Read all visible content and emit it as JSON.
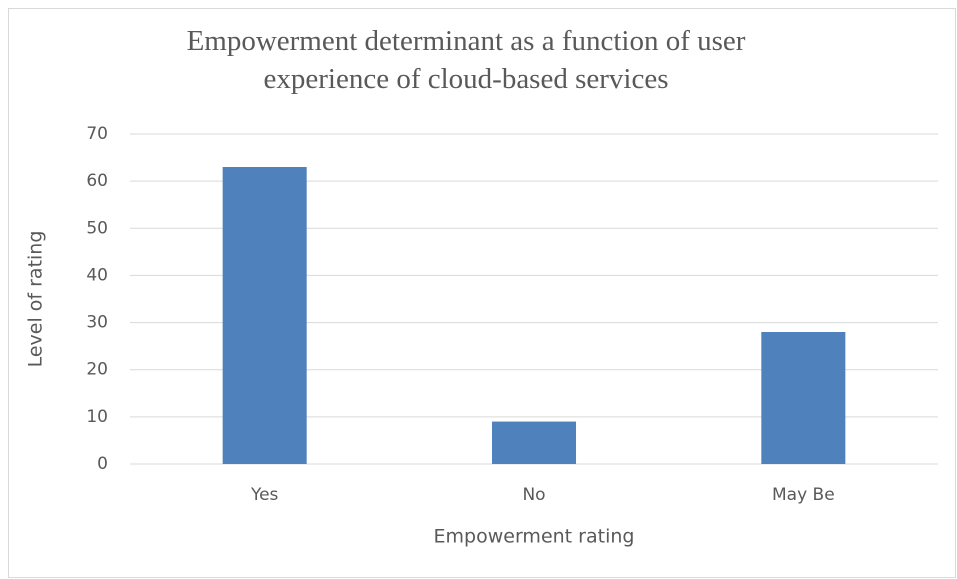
{
  "chart_data": {
    "type": "bar",
    "title": "Empowerment determinant as a function of user experience of cloud-based services",
    "x_label": "Empowerment rating",
    "y_label": "Level of rating",
    "categories": [
      "Yes",
      "No",
      "May Be"
    ],
    "values": [
      63,
      9,
      28
    ],
    "color": "#4f81bd",
    "ylim": [
      0,
      70
    ],
    "yticks": [
      0,
      10,
      20,
      30,
      40,
      50,
      60,
      70
    ],
    "grid": true
  }
}
